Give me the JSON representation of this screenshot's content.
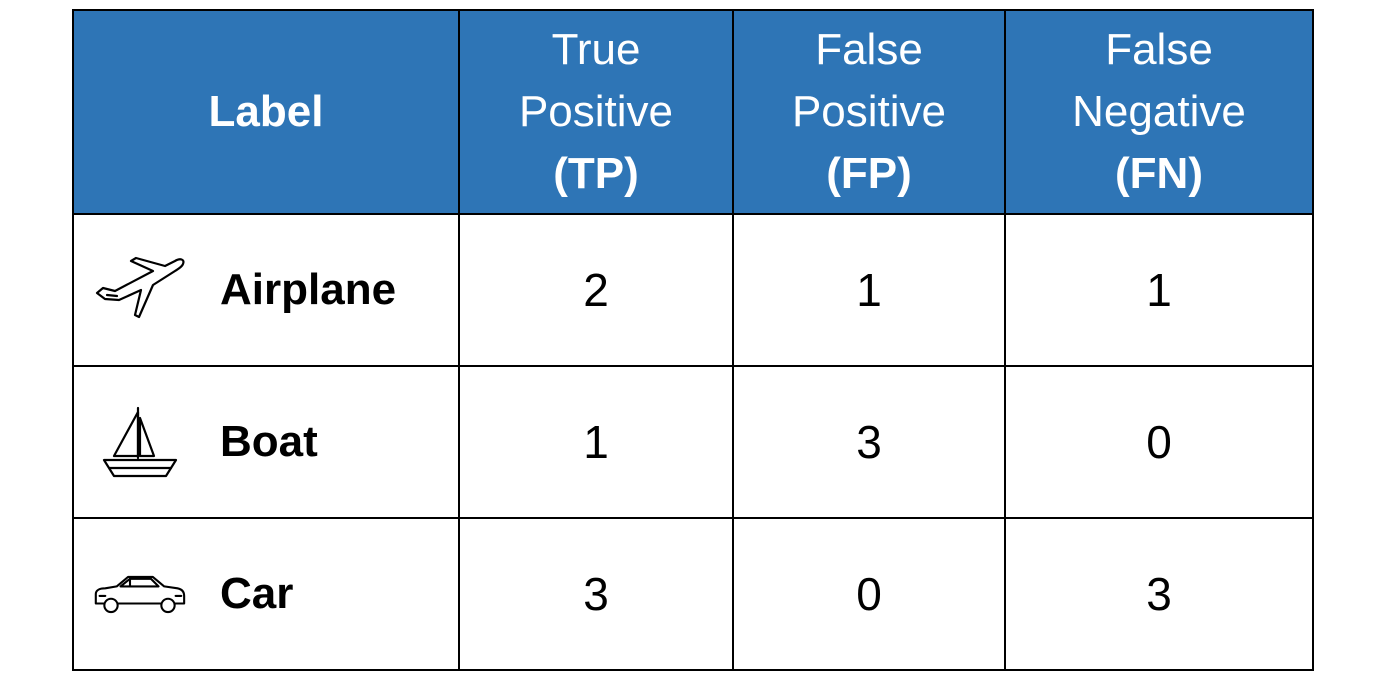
{
  "chart_data": {
    "type": "table",
    "columns": [
      {
        "key": "label",
        "title": [
          "Label"
        ]
      },
      {
        "key": "tp",
        "title": [
          "True",
          "Positive"
        ],
        "abbr": "(TP)"
      },
      {
        "key": "fp",
        "title": [
          "False",
          "Positive"
        ],
        "abbr": "(FP)"
      },
      {
        "key": "fn",
        "title": [
          "False",
          "Negative"
        ],
        "abbr": "(FN)"
      }
    ],
    "rows": [
      {
        "label": "Airplane",
        "icon": "airplane-icon",
        "tp": "2",
        "fp": "1",
        "fn": "1"
      },
      {
        "label": "Boat",
        "icon": "sailboat-icon",
        "tp": "1",
        "fp": "3",
        "fn": "0"
      },
      {
        "label": "Car",
        "icon": "car-icon",
        "tp": "3",
        "fp": "0",
        "fn": "3"
      }
    ]
  },
  "colors": {
    "header_bg": "#2e75b6",
    "header_text": "#ffffff",
    "border": "#000000"
  }
}
